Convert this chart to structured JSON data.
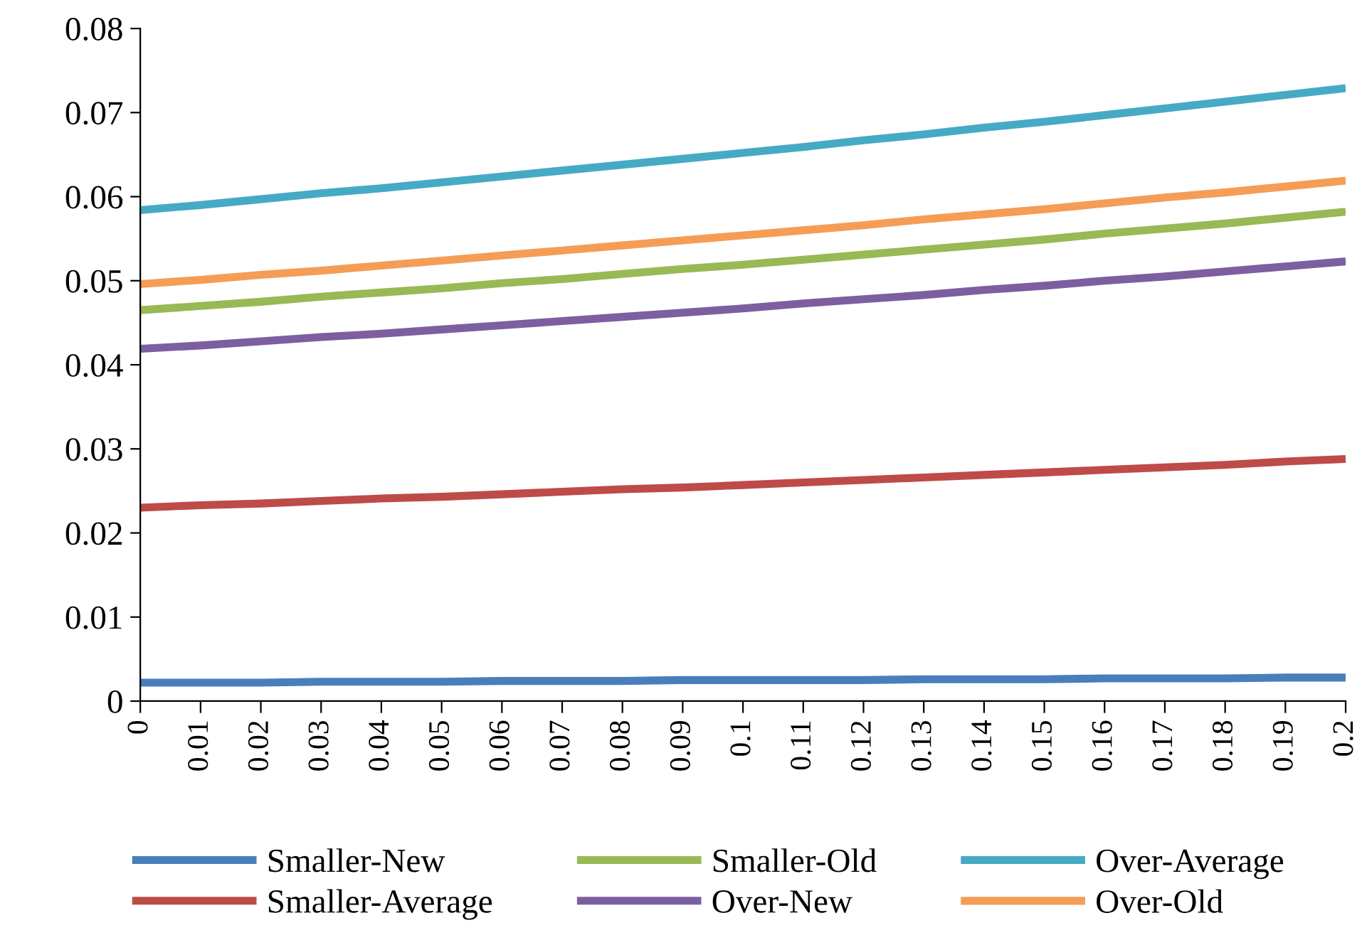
{
  "chart_data": {
    "type": "line",
    "categories": [
      "0",
      "0.01",
      "0.02",
      "0.03",
      "0.04",
      "0.05",
      "0.06",
      "0.07",
      "0.08",
      "0.09",
      "0.1",
      "0.11",
      "0.12",
      "0.13",
      "0.14",
      "0.15",
      "0.16",
      "0.17",
      "0.18",
      "0.19",
      "0.2"
    ],
    "series": [
      {
        "name": "Smaller-New",
        "color": "#4a7ebb",
        "values": [
          0.0022,
          0.0022,
          0.0022,
          0.0023,
          0.0023,
          0.0023,
          0.0024,
          0.0024,
          0.0024,
          0.0025,
          0.0025,
          0.0025,
          0.0025,
          0.0026,
          0.0026,
          0.0026,
          0.0027,
          0.0027,
          0.0027,
          0.0028,
          0.0028
        ]
      },
      {
        "name": "Smaller-Average",
        "color": "#be4b48",
        "values": [
          0.023,
          0.0233,
          0.0235,
          0.0238,
          0.0241,
          0.0243,
          0.0246,
          0.0249,
          0.0252,
          0.0254,
          0.0257,
          0.026,
          0.0263,
          0.0266,
          0.0269,
          0.0272,
          0.0275,
          0.0278,
          0.0281,
          0.0285,
          0.0288
        ]
      },
      {
        "name": "Smaller-Old",
        "color": "#98b954",
        "values": [
          0.0465,
          0.047,
          0.0475,
          0.0481,
          0.0486,
          0.0491,
          0.0497,
          0.0502,
          0.0508,
          0.0514,
          0.0519,
          0.0525,
          0.0531,
          0.0537,
          0.0543,
          0.0549,
          0.0556,
          0.0562,
          0.0568,
          0.0575,
          0.0582
        ]
      },
      {
        "name": "Over-New",
        "color": "#7d5fa0",
        "values": [
          0.0419,
          0.0423,
          0.0428,
          0.0433,
          0.0437,
          0.0442,
          0.0447,
          0.0452,
          0.0457,
          0.0462,
          0.0467,
          0.0473,
          0.0478,
          0.0483,
          0.0489,
          0.0494,
          0.05,
          0.0505,
          0.0511,
          0.0517,
          0.0523
        ]
      },
      {
        "name": "Over-Average",
        "color": "#46aac5",
        "values": [
          0.0584,
          0.059,
          0.0597,
          0.0604,
          0.061,
          0.0617,
          0.0624,
          0.0631,
          0.0638,
          0.0645,
          0.0652,
          0.0659,
          0.0667,
          0.0674,
          0.0682,
          0.0689,
          0.0697,
          0.0705,
          0.0713,
          0.0721,
          0.0729
        ]
      },
      {
        "name": "Over-Old",
        "color": "#f59d56",
        "values": [
          0.0496,
          0.0501,
          0.0507,
          0.0512,
          0.0518,
          0.0524,
          0.053,
          0.0536,
          0.0542,
          0.0548,
          0.0554,
          0.056,
          0.0566,
          0.0573,
          0.0579,
          0.0585,
          0.0592,
          0.0599,
          0.0605,
          0.0612,
          0.0619
        ]
      }
    ],
    "ylim": [
      0,
      0.08
    ],
    "yticks": [
      0,
      0.01,
      0.02,
      0.03,
      0.04,
      0.05,
      0.06,
      0.07,
      0.08
    ],
    "legend": "bottom",
    "line_style": "solid"
  }
}
